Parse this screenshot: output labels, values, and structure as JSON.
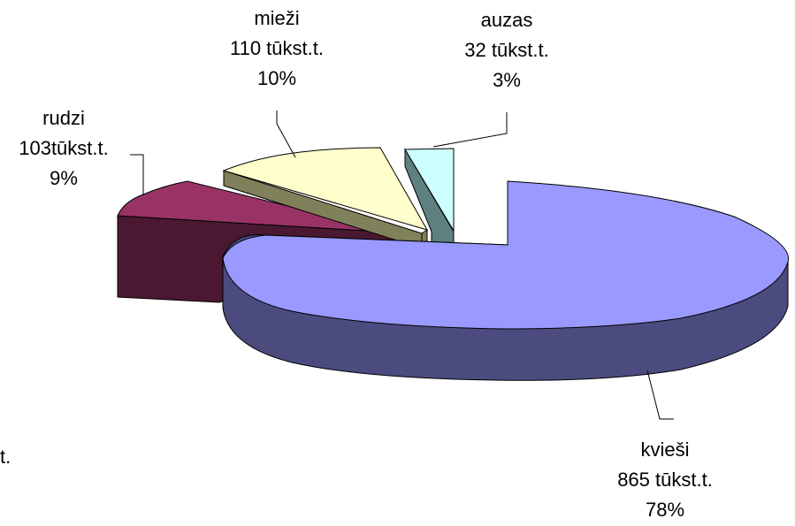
{
  "chart_data": {
    "type": "pie",
    "style": "3d-exploded",
    "slices": [
      {
        "name": "kvieši",
        "value": 865,
        "value_label": "865 tūkst.t.",
        "percent_label": "78%",
        "top_color": "#9999FF",
        "side_color": "#4B4B80"
      },
      {
        "name": "rudzi",
        "value": 103,
        "value_label": "103tūkst.t.",
        "percent_label": "9%",
        "top_color": "#993366",
        "side_color": "#4A1931"
      },
      {
        "name": "mieži",
        "value": 110,
        "value_label": "110 tūkst.t.",
        "percent_label": "10%",
        "top_color": "#FFFFCC",
        "side_color": "#80805A"
      },
      {
        "name": "auzas",
        "value": 32,
        "value_label": "32 tūkst.t.",
        "percent_label": "3%",
        "top_color": "#CCFFFF",
        "side_color": "#5F8080"
      }
    ],
    "clipped_fragment": "t."
  }
}
